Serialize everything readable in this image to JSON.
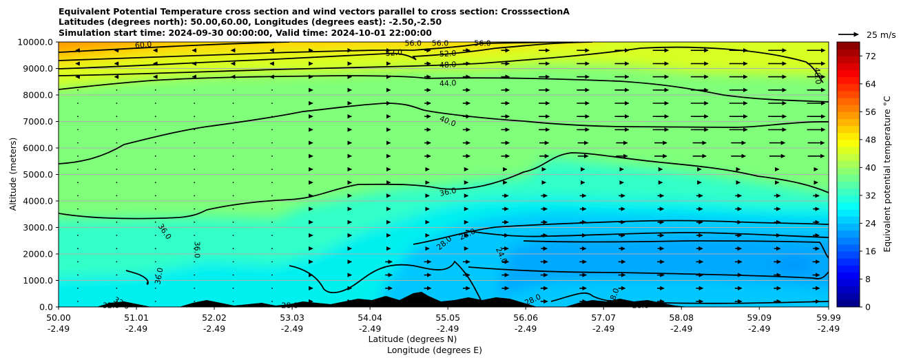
{
  "chart_data": {
    "type": "heatmap",
    "title_lines": [
      "Equivalent Potential Temperature cross section and wind vectors parallel to cross section: CrosssectionA",
      "Latitudes (degrees north): 50.00,60.00, Longitudes (degrees east): -2.50,-2.50",
      "Simulation start time: 2024-09-30 00:00:00, Valid time: 2024-10-01 22:00:00"
    ],
    "xlabel_line1": "Latitude (degrees N)",
    "xlabel_line2": "Longitude (degrees E)",
    "ylabel": "Altitude (meters)",
    "xlim": [
      50.0,
      59.99
    ],
    "ylim": [
      0,
      10000
    ],
    "x_ticks": [
      {
        "lat": "50.00",
        "lon": "-2.49",
        "value": 50.0
      },
      {
        "lat": "51.01",
        "lon": "-2.49",
        "value": 51.01
      },
      {
        "lat": "52.02",
        "lon": "-2.49",
        "value": 52.02
      },
      {
        "lat": "53.03",
        "lon": "-2.49",
        "value": 53.03
      },
      {
        "lat": "54.04",
        "lon": "-2.49",
        "value": 54.04
      },
      {
        "lat": "55.05",
        "lon": "-2.49",
        "value": 55.05
      },
      {
        "lat": "56.06",
        "lon": "-2.49",
        "value": 56.06
      },
      {
        "lat": "57.07",
        "lon": "-2.49",
        "value": 57.07
      },
      {
        "lat": "58.08",
        "lon": "-2.49",
        "value": 58.08
      },
      {
        "lat": "59.09",
        "lon": "-2.49",
        "value": 59.09
      },
      {
        "lat": "59.99",
        "lon": "-2.49",
        "value": 59.99
      }
    ],
    "y_ticks": [
      {
        "label": "0.0",
        "value": 0
      },
      {
        "label": "1000.0",
        "value": 1000
      },
      {
        "label": "2000.0",
        "value": 2000
      },
      {
        "label": "3000.0",
        "value": 3000
      },
      {
        "label": "4000.0",
        "value": 4000
      },
      {
        "label": "5000.0",
        "value": 5000
      },
      {
        "label": "6000.0",
        "value": 6000
      },
      {
        "label": "7000.0",
        "value": 7000
      },
      {
        "label": "8000.0",
        "value": 8000
      },
      {
        "label": "9000.0",
        "value": 9000
      },
      {
        "label": "10000.0",
        "value": 10000
      }
    ],
    "grid": "horizontal",
    "colorbar": {
      "label": "Equivalent potential temperature °C",
      "min": 0,
      "max": 76,
      "step": 2,
      "tick_values": [
        0,
        8,
        16,
        24,
        32,
        40,
        48,
        56,
        64,
        72
      ],
      "tick_labels": [
        "0",
        "8",
        "16",
        "24",
        "32",
        "40",
        "48",
        "56",
        "64",
        "72"
      ],
      "colormap": "jet"
    },
    "quiver_key": {
      "label": "25 m/s",
      "speed": 25
    },
    "contour_labels": [
      {
        "text": "60.0",
        "lat": 51.1,
        "alt": 9900,
        "angle": -5
      },
      {
        "text": "56.0",
        "lat": 54.6,
        "alt": 9960,
        "angle": 0
      },
      {
        "text": "56.0",
        "lat": 54.95,
        "alt": 9960,
        "angle": 0
      },
      {
        "text": "56.0",
        "lat": 55.5,
        "alt": 9960,
        "angle": 0
      },
      {
        "text": "52.0",
        "lat": 54.35,
        "alt": 9600,
        "angle": -4
      },
      {
        "text": "52.0",
        "lat": 55.05,
        "alt": 9570,
        "angle": -3
      },
      {
        "text": "48.0",
        "lat": 55.05,
        "alt": 9150,
        "angle": -3
      },
      {
        "text": "48.0",
        "lat": 59.85,
        "alt": 8720,
        "angle": 85
      },
      {
        "text": "44.0",
        "lat": 55.05,
        "alt": 8450,
        "angle": -3
      },
      {
        "text": "40.0",
        "lat": 55.05,
        "alt": 7020,
        "angle": 22
      },
      {
        "text": "36.0",
        "lat": 55.05,
        "alt": 4350,
        "angle": -12
      },
      {
        "text": "36.0",
        "lat": 51.38,
        "alt": 2850,
        "angle": 55
      },
      {
        "text": "36.0",
        "lat": 51.8,
        "alt": 2160,
        "angle": 90
      },
      {
        "text": "36.0",
        "lat": 51.3,
        "alt": 1170,
        "angle": -80
      },
      {
        "text": "32.0",
        "lat": 50.68,
        "alt": 60,
        "angle": 0
      },
      {
        "text": "32.0",
        "lat": 50.82,
        "alt": 150,
        "angle": 30
      },
      {
        "text": "28.0",
        "lat": 53.0,
        "alt": 60,
        "angle": 0
      },
      {
        "text": "28.0",
        "lat": 55.0,
        "alt": 2420,
        "angle": -40
      },
      {
        "text": "28.0",
        "lat": 55.3,
        "alt": 2750,
        "angle": -25
      },
      {
        "text": "24.0",
        "lat": 55.75,
        "alt": 1950,
        "angle": 65
      },
      {
        "text": "28.0",
        "lat": 56.15,
        "alt": 280,
        "angle": -25
      },
      {
        "text": "28.0",
        "lat": 57.2,
        "alt": 400,
        "angle": -70
      },
      {
        "text": "28.0",
        "lat": 57.55,
        "alt": 60,
        "angle": 0
      }
    ]
  }
}
